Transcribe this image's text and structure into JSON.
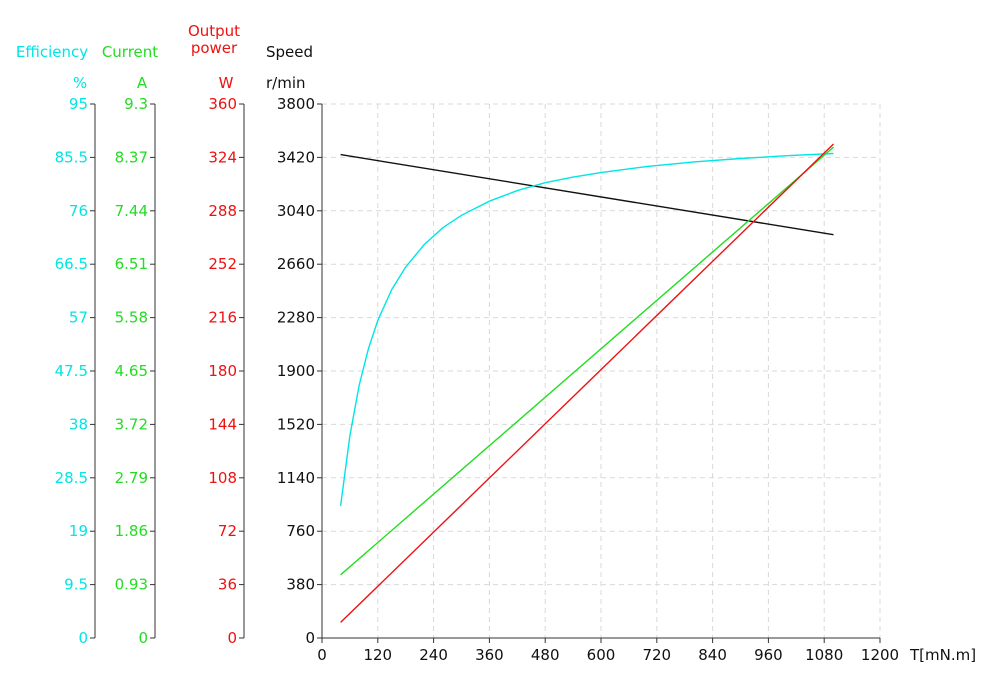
{
  "chart_data": {
    "type": "line",
    "xlabel": "T[mN.m]",
    "xlim": [
      0,
      1200
    ],
    "x_ticks": [
      "0",
      "120",
      "240",
      "360",
      "480",
      "600",
      "720",
      "840",
      "960",
      "1080",
      "1200"
    ],
    "grid": true,
    "axes": [
      {
        "id": "efficiency",
        "name": "Efficiency",
        "unit": "%",
        "color": "#00e5e5",
        "range": [
          0,
          95
        ],
        "ticks": [
          "0",
          "9.5",
          "19",
          "28.5",
          "38",
          "47.5",
          "57",
          "66.5",
          "76",
          "85.5",
          "95"
        ]
      },
      {
        "id": "current",
        "name": "Current",
        "unit": "A",
        "color": "#22dd22",
        "range": [
          0,
          9.3
        ],
        "ticks": [
          "0",
          "0.93",
          "1.86",
          "2.79",
          "3.72",
          "4.65",
          "5.58",
          "6.51",
          "7.44",
          "8.37",
          "9.3"
        ]
      },
      {
        "id": "power",
        "name_lines": [
          "Output",
          "power"
        ],
        "unit": "W",
        "color": "#ee1111",
        "range": [
          0,
          360
        ],
        "ticks": [
          "0",
          "36",
          "72",
          "108",
          "144",
          "180",
          "216",
          "252",
          "288",
          "324",
          "360"
        ]
      },
      {
        "id": "speed",
        "name": "Speed",
        "unit": "r/min",
        "color": "#111111",
        "range": [
          0,
          3800
        ],
        "ticks": [
          "0",
          "380",
          "760",
          "1140",
          "1520",
          "1900",
          "2280",
          "2660",
          "3040",
          "3420",
          "3800"
        ]
      }
    ],
    "series": [
      {
        "axis": "speed",
        "color": "#111111",
        "x": [
          40,
          1100
        ],
        "y": [
          3440,
          2870
        ]
      },
      {
        "axis": "efficiency",
        "color": "#00e5e5",
        "x": [
          40,
          60,
          80,
          100,
          120,
          150,
          180,
          220,
          260,
          300,
          360,
          420,
          480,
          540,
          600,
          700,
          800,
          900,
          1000,
          1100
        ],
        "y": [
          23.5,
          36,
          45,
          51.5,
          56.5,
          62,
          66,
          70,
          73,
          75.2,
          77.7,
          79.6,
          81,
          82,
          82.8,
          83.9,
          84.7,
          85.3,
          85.8,
          86.2
        ]
      },
      {
        "axis": "current",
        "color": "#22dd22",
        "x": [
          40,
          1100
        ],
        "y": [
          1.1,
          8.55
        ]
      },
      {
        "axis": "power",
        "color": "#ee1111",
        "x": [
          40,
          1100
        ],
        "y": [
          10.5,
          333
        ]
      }
    ]
  }
}
